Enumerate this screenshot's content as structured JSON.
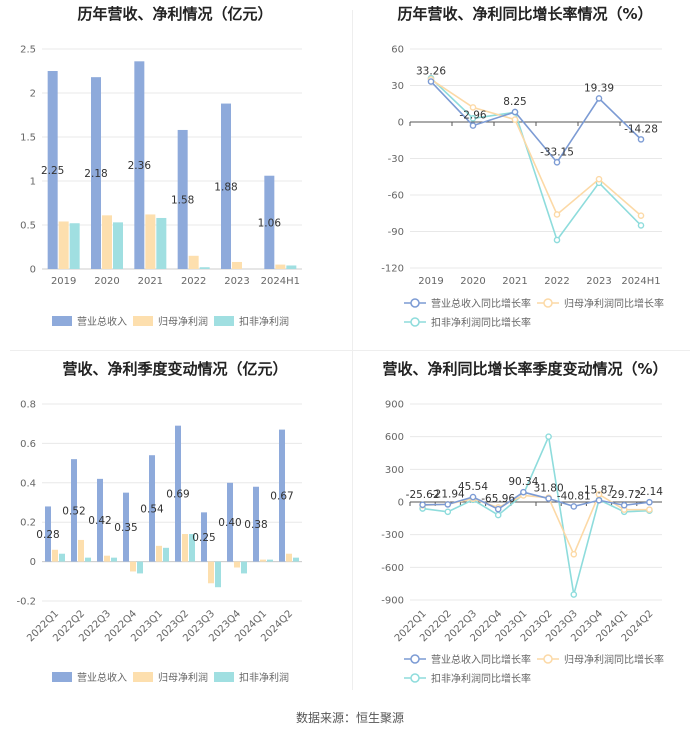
{
  "source": "数据来源：恒生聚源",
  "colors": {
    "revenue": "#8eaadb",
    "parent_profit": "#fddfae",
    "deducted_profit": "#a0dfe1",
    "revenue_line": "#7c9bd4",
    "parent_line": "#fcd9a6",
    "deducted_line": "#8edcdc",
    "grid": "#e8e8e8",
    "axis_text": "#666666"
  },
  "chart_data": [
    {
      "id": "annual_bar",
      "type": "bar",
      "title": "历年营收、净利情况（亿元）",
      "categories": [
        "2019",
        "2020",
        "2021",
        "2022",
        "2023",
        "2024H1"
      ],
      "ylim": [
        0,
        2.5
      ],
      "yticks": [
        "0",
        "0.5",
        "1",
        "1.5",
        "2",
        "2.5"
      ],
      "series": [
        {
          "name": "营业总收入",
          "values": [
            2.25,
            2.18,
            2.36,
            1.58,
            1.88,
            1.06
          ],
          "labels": [
            "2.25",
            "2.18",
            "2.36",
            "1.58",
            "1.88",
            "1.06"
          ]
        },
        {
          "name": "归母净利润",
          "values": [
            0.54,
            0.61,
            0.62,
            0.15,
            0.08,
            0.05
          ]
        },
        {
          "name": "扣非净利润",
          "values": [
            0.52,
            0.53,
            0.58,
            0.02,
            0.0,
            0.04
          ]
        }
      ]
    },
    {
      "id": "annual_line",
      "type": "line",
      "title": "历年营收、净利同比增长率情况（%）",
      "categories": [
        "2019",
        "2020",
        "2021",
        "2022",
        "2023",
        "2024H1"
      ],
      "ylim": [
        -120,
        60
      ],
      "yticks": [
        "-120",
        "-90",
        "-60",
        "-30",
        "0",
        "30",
        "60"
      ],
      "series": [
        {
          "name": "营业总收入同比增长率",
          "values": [
            33.26,
            -2.96,
            8.25,
            -33.15,
            19.39,
            -14.28
          ],
          "labels": [
            "33.26",
            "-2.96",
            "8.25",
            "-33.15",
            "19.39",
            "-14.28"
          ]
        },
        {
          "name": "归母净利润同比增长率",
          "values": [
            35,
            12,
            2,
            -76,
            -47,
            -77
          ]
        },
        {
          "name": "扣非净利润同比增长率",
          "values": [
            36,
            3,
            8,
            -97,
            -50,
            -85
          ]
        }
      ]
    },
    {
      "id": "quarter_bar",
      "type": "bar",
      "title": "营收、净利季度变动情况（亿元）",
      "categories": [
        "2022Q1",
        "2022Q2",
        "2022Q3",
        "2022Q4",
        "2023Q1",
        "2023Q2",
        "2023Q3",
        "2023Q4",
        "2024Q1",
        "2024Q2"
      ],
      "ylim": [
        -0.2,
        0.8
      ],
      "yticks": [
        "-0.2",
        "0",
        "0.2",
        "0.4",
        "0.6",
        "0.8"
      ],
      "series": [
        {
          "name": "营业总收入",
          "values": [
            0.28,
            0.52,
            0.42,
            0.35,
            0.54,
            0.69,
            0.25,
            0.4,
            0.38,
            0.67
          ],
          "labels": [
            "0.28",
            "0.52",
            "0.42",
            "0.35",
            "0.54",
            "0.69",
            "0.25",
            "0.40",
            "0.38",
            "0.67"
          ]
        },
        {
          "name": "归母净利润",
          "values": [
            0.06,
            0.11,
            0.03,
            -0.05,
            0.08,
            0.14,
            -0.11,
            -0.03,
            0.01,
            0.04
          ]
        },
        {
          "name": "扣非净利润",
          "values": [
            0.04,
            0.02,
            0.02,
            -0.06,
            0.07,
            0.14,
            -0.13,
            -0.06,
            0.01,
            0.02
          ]
        }
      ]
    },
    {
      "id": "quarter_line",
      "type": "line",
      "title": "营收、净利同比增长率季度变动情况（%）",
      "categories": [
        "2022Q1",
        "2022Q2",
        "2022Q3",
        "2022Q4",
        "2023Q1",
        "2023Q2",
        "2023Q3",
        "2023Q4",
        "2024Q1",
        "2024Q2"
      ],
      "ylim": [
        -900,
        900
      ],
      "yticks": [
        "-900",
        "-600",
        "-300",
        "0",
        "300",
        "600",
        "900"
      ],
      "series": [
        {
          "name": "营业总收入同比增长率",
          "values": [
            -25.62,
            -21.94,
            45.54,
            -65.96,
            90.34,
            31.8,
            -40.81,
            15.87,
            -29.72,
            -2.14
          ],
          "labels": [
            "-25.62",
            "-21.94",
            "45.54",
            "-65.96",
            "90.34",
            "31.80",
            "-40.81",
            "15.87",
            "-29.72",
            "-2.14"
          ]
        },
        {
          "name": "归母净利润同比增长率",
          "values": [
            -30,
            -20,
            30,
            -50,
            60,
            40,
            -480,
            70,
            -70,
            -70
          ]
        },
        {
          "name": "扣非净利润同比增长率",
          "values": [
            -60,
            -90,
            20,
            -120,
            70,
            600,
            -850,
            20,
            -90,
            -80
          ]
        }
      ]
    }
  ]
}
